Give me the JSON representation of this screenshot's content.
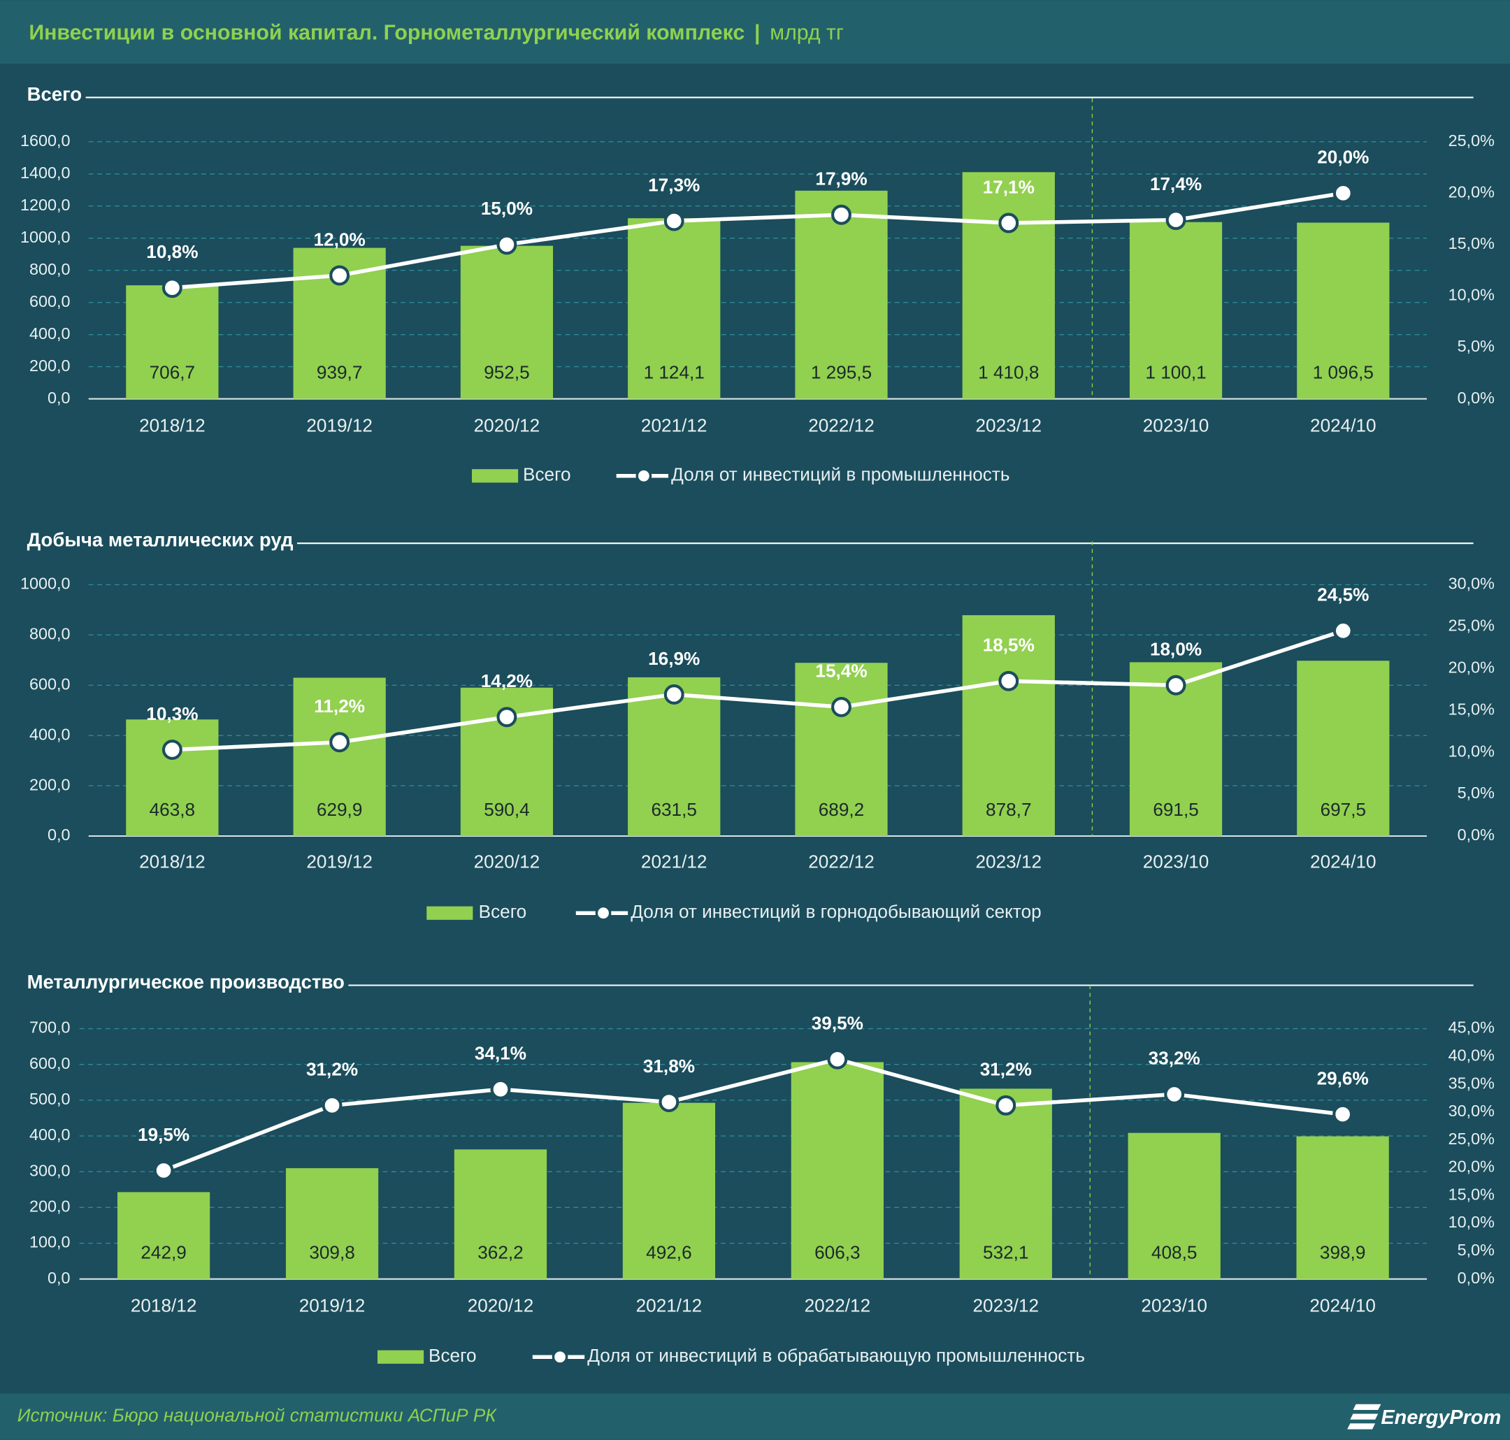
{
  "title": "Инвестиции в основной капитал. Горнометаллургический комплекс",
  "unit": "млрд тг",
  "source": "Источник: Бюро национальной статистики АСПиР РК",
  "logo": "EnergyProm",
  "chart_data": [
    {
      "type": "combo",
      "title": "Всего",
      "categories": [
        "2018/12",
        "2019/12",
        "2020/12",
        "2021/12",
        "2022/12",
        "2023/12",
        "2023/10",
        "2024/10"
      ],
      "series": [
        {
          "name": "Всего",
          "type": "bar",
          "color": "#92d050",
          "values": [
            706.7,
            939.7,
            952.5,
            1124.1,
            1295.5,
            1410.8,
            1100.1,
            1096.5
          ],
          "value_labels": [
            "706,7",
            "939,7",
            "952,5",
            "1 124,1",
            "1 295,5",
            "1 410,8",
            "1 100,1",
            "1 096,5"
          ]
        },
        {
          "name": "Доля от инвестиций в промышленность",
          "type": "line",
          "axis": "y2",
          "color": "#ffffff",
          "values": [
            10.8,
            12.0,
            15.0,
            17.3,
            17.9,
            17.1,
            17.4,
            20.0
          ],
          "value_labels": [
            "10,8%",
            "12,0%",
            "15,0%",
            "17,3%",
            "17,9%",
            "17,1%",
            "17,4%",
            "20,0%"
          ]
        }
      ],
      "ylim": [
        0,
        1600
      ],
      "yticks": [
        {
          "value": 0,
          "label": "0,0"
        },
        {
          "value": 200,
          "label": "200,0"
        },
        {
          "value": 400,
          "label": "400,0"
        },
        {
          "value": 600,
          "label": "600,0"
        },
        {
          "value": 800,
          "label": "800,0"
        },
        {
          "value": 1000,
          "label": "1000,0"
        },
        {
          "value": 1200,
          "label": "1200,0"
        },
        {
          "value": 1400,
          "label": "1400,0"
        },
        {
          "value": 1600,
          "label": "1600,0"
        }
      ],
      "y2lim": [
        0,
        25
      ],
      "y2ticks": [
        {
          "value": 0,
          "label": "0,0%"
        },
        {
          "value": 5,
          "label": "5,0%"
        },
        {
          "value": 10,
          "label": "10,0%"
        },
        {
          "value": 15,
          "label": "15,0%"
        },
        {
          "value": 20,
          "label": "20,0%"
        },
        {
          "value": 25,
          "label": "25,0%"
        }
      ],
      "grid": true
    },
    {
      "type": "combo",
      "title": "Добыча металлических руд",
      "categories": [
        "2018/12",
        "2019/12",
        "2020/12",
        "2021/12",
        "2022/12",
        "2023/12",
        "2023/10",
        "2024/10"
      ],
      "series": [
        {
          "name": "Всего",
          "type": "bar",
          "color": "#92d050",
          "values": [
            463.8,
            629.9,
            590.4,
            631.5,
            689.2,
            878.7,
            691.5,
            697.5
          ],
          "value_labels": [
            "463,8",
            "629,9",
            "590,4",
            "631,5",
            "689,2",
            "878,7",
            "691,5",
            "697,5"
          ]
        },
        {
          "name": "Доля от инвестиций в горнодобывающий сектор",
          "type": "line",
          "axis": "y2",
          "color": "#ffffff",
          "values": [
            10.3,
            11.2,
            14.2,
            16.9,
            15.4,
            18.5,
            18.0,
            24.5
          ],
          "value_labels": [
            "10,3%",
            "11,2%",
            "14,2%",
            "16,9%",
            "15,4%",
            "18,5%",
            "18,0%",
            "24,5%"
          ]
        }
      ],
      "ylim": [
        0,
        1000
      ],
      "yticks": [
        {
          "value": 0,
          "label": "0,0"
        },
        {
          "value": 200,
          "label": "200,0"
        },
        {
          "value": 400,
          "label": "400,0"
        },
        {
          "value": 600,
          "label": "600,0"
        },
        {
          "value": 800,
          "label": "800,0"
        },
        {
          "value": 1000,
          "label": "1000,0"
        }
      ],
      "y2lim": [
        0,
        30
      ],
      "y2ticks": [
        {
          "value": 0,
          "label": "0,0%"
        },
        {
          "value": 5,
          "label": "5,0%"
        },
        {
          "value": 10,
          "label": "10,0%"
        },
        {
          "value": 15,
          "label": "15,0%"
        },
        {
          "value": 20,
          "label": "20,0%"
        },
        {
          "value": 25,
          "label": "25,0%"
        },
        {
          "value": 30,
          "label": "30,0%"
        }
      ],
      "grid": true
    },
    {
      "type": "combo",
      "title": "Металлургическое производство",
      "categories": [
        "2018/12",
        "2019/12",
        "2020/12",
        "2021/12",
        "2022/12",
        "2023/12",
        "2023/10",
        "2024/10"
      ],
      "series": [
        {
          "name": "Всего",
          "type": "bar",
          "color": "#92d050",
          "values": [
            242.9,
            309.8,
            362.2,
            492.6,
            606.3,
            532.1,
            408.5,
            398.9
          ],
          "value_labels": [
            "242,9",
            "309,8",
            "362,2",
            "492,6",
            "606,3",
            "532,1",
            "408,5",
            "398,9"
          ]
        },
        {
          "name": "Доля от инвестиций в обрабатывающую промышленность",
          "type": "line",
          "axis": "y2",
          "color": "#ffffff",
          "values": [
            19.5,
            31.2,
            34.1,
            31.8,
            39.5,
            31.2,
            33.2,
            29.6
          ],
          "value_labels": [
            "19,5%",
            "31,2%",
            "34,1%",
            "31,8%",
            "39,5%",
            "31,2%",
            "33,2%",
            "29,6%"
          ]
        }
      ],
      "ylim": [
        0,
        700
      ],
      "yticks": [
        {
          "value": 0,
          "label": "0,0"
        },
        {
          "value": 100,
          "label": "100,0"
        },
        {
          "value": 200,
          "label": "200,0"
        },
        {
          "value": 300,
          "label": "300,0"
        },
        {
          "value": 400,
          "label": "400,0"
        },
        {
          "value": 500,
          "label": "500,0"
        },
        {
          "value": 600,
          "label": "600,0"
        },
        {
          "value": 700,
          "label": "700,0"
        }
      ],
      "y2lim": [
        0,
        45
      ],
      "y2ticks": [
        {
          "value": 0,
          "label": "0,0%"
        },
        {
          "value": 5,
          "label": "5,0%"
        },
        {
          "value": 10,
          "label": "10,0%"
        },
        {
          "value": 15,
          "label": "15,0%"
        },
        {
          "value": 20,
          "label": "20,0%"
        },
        {
          "value": 25,
          "label": "25,0%"
        },
        {
          "value": 30,
          "label": "30,0%"
        },
        {
          "value": 35,
          "label": "35,0%"
        },
        {
          "value": 40,
          "label": "40,0%"
        },
        {
          "value": 45,
          "label": "45,0%"
        }
      ],
      "grid": true
    }
  ]
}
